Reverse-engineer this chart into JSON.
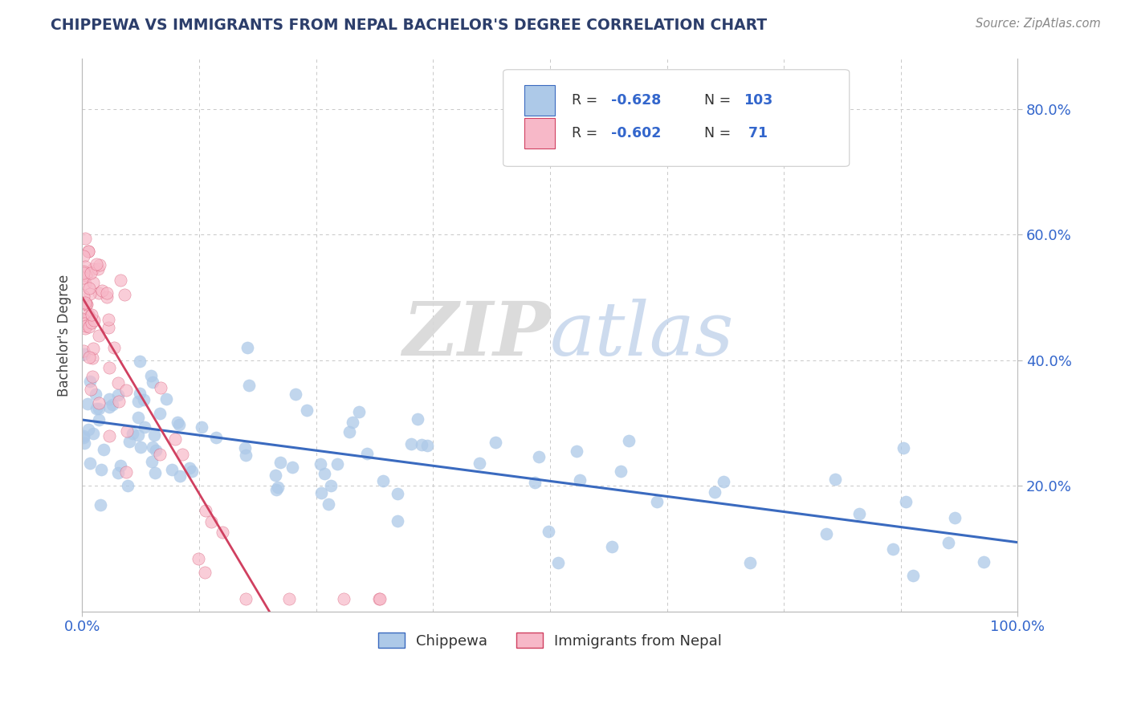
{
  "title": "CHIPPEWA VS IMMIGRANTS FROM NEPAL BACHELOR'S DEGREE CORRELATION CHART",
  "source": "Source: ZipAtlas.com",
  "ylabel": "Bachelor's Degree",
  "chippewa_color": "#adc9e8",
  "chippewa_line_color": "#3a6abf",
  "nepal_color": "#f7b8c8",
  "nepal_line_color": "#d04060",
  "watermark_zip": "ZIP",
  "watermark_atlas": "atlas",
  "chippewa_label": "Chippewa",
  "nepal_label": "Immigrants from Nepal",
  "bg_color": "#ffffff",
  "grid_color": "#c8c8c8",
  "title_color": "#2c3e6b",
  "source_color": "#888888",
  "axis_label_color": "#333333",
  "tick_color": "#3366cc",
  "legend_value_color": "#3366cc",
  "legend_r1": "-0.628",
  "legend_n1": "103",
  "legend_r2": "-0.602",
  "legend_n2": " 71"
}
